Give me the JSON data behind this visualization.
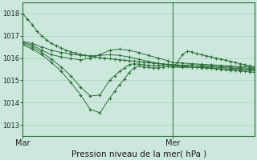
{
  "background_color": "#cce8dc",
  "grid_color": "#aacfbf",
  "line_color": "#2d6e3a",
  "ylabel_ticks": [
    1013,
    1014,
    1015,
    1016,
    1017,
    1018
  ],
  "xlim": [
    0,
    96
  ],
  "ylim": [
    1012.5,
    1018.5
  ],
  "xlabel": "Pression niveau de la mer( hPa )",
  "xtick_positions": [
    0,
    62
  ],
  "xtick_labels": [
    "Mar",
    "Mer"
  ],
  "vline_x": 62,
  "series": [
    {
      "x": [
        0,
        2,
        4,
        6,
        8,
        10,
        12,
        14,
        16,
        18,
        20,
        22,
        24,
        26,
        28,
        30,
        32,
        34,
        36,
        38,
        40,
        42,
        44,
        46,
        48,
        50,
        52,
        54,
        56,
        58,
        60,
        62,
        64,
        66,
        68,
        70,
        72,
        74,
        76,
        78,
        80,
        82,
        84,
        86,
        88,
        90,
        92,
        94,
        96
      ],
      "y": [
        1018.0,
        1017.75,
        1017.5,
        1017.2,
        1017.0,
        1016.8,
        1016.65,
        1016.55,
        1016.45,
        1016.35,
        1016.28,
        1016.22,
        1016.17,
        1016.12,
        1016.08,
        1016.05,
        1016.02,
        1016.0,
        1015.97,
        1015.95,
        1015.93,
        1015.9,
        1015.88,
        1015.86,
        1015.84,
        1015.82,
        1015.8,
        1015.78,
        1015.76,
        1015.74,
        1015.72,
        1015.7,
        1015.68,
        1015.66,
        1015.64,
        1015.62,
        1015.6,
        1015.58,
        1015.56,
        1015.54,
        1015.52,
        1015.5,
        1015.48,
        1015.46,
        1015.44,
        1015.42,
        1015.4,
        1015.38,
        1015.36
      ]
    },
    {
      "x": [
        0,
        4,
        8,
        12,
        16,
        20,
        24,
        28,
        32,
        36,
        38,
        40,
        42,
        44,
        46,
        48,
        50,
        52,
        54,
        56,
        58,
        60,
        62,
        66,
        70,
        74,
        78,
        82,
        86,
        90,
        94,
        96
      ],
      "y": [
        1016.6,
        1016.4,
        1016.15,
        1015.8,
        1015.4,
        1014.9,
        1014.35,
        1013.7,
        1013.55,
        1014.2,
        1014.5,
        1014.8,
        1015.05,
        1015.35,
        1015.55,
        1015.65,
        1015.6,
        1015.58,
        1015.55,
        1015.57,
        1015.6,
        1015.62,
        1015.6,
        1015.58,
        1015.6,
        1015.62,
        1015.6,
        1015.58,
        1015.55,
        1015.52,
        1015.5,
        1015.48
      ]
    },
    {
      "x": [
        0,
        4,
        8,
        12,
        16,
        20,
        24,
        28,
        32,
        36,
        38,
        40,
        42,
        44,
        46,
        48,
        50,
        52,
        54,
        56,
        58,
        60,
        62,
        66,
        70,
        74,
        78,
        82,
        86,
        90,
        94,
        96
      ],
      "y": [
        1016.65,
        1016.5,
        1016.25,
        1015.95,
        1015.6,
        1015.2,
        1014.7,
        1014.3,
        1014.35,
        1015.0,
        1015.2,
        1015.4,
        1015.55,
        1015.7,
        1015.75,
        1015.73,
        1015.7,
        1015.68,
        1015.65,
        1015.67,
        1015.7,
        1015.72,
        1015.7,
        1015.68,
        1015.7,
        1015.68,
        1015.65,
        1015.62,
        1015.6,
        1015.57,
        1015.55,
        1015.52
      ]
    },
    {
      "x": [
        0,
        4,
        8,
        12,
        16,
        20,
        24,
        28,
        32,
        36,
        40,
        44,
        48,
        52,
        56,
        60,
        62,
        66,
        70,
        74,
        78,
        82,
        86,
        90,
        94,
        96
      ],
      "y": [
        1016.7,
        1016.58,
        1016.35,
        1016.15,
        1016.05,
        1015.98,
        1015.92,
        1016.0,
        1016.15,
        1016.35,
        1016.4,
        1016.35,
        1016.25,
        1016.12,
        1016.0,
        1015.88,
        1015.8,
        1015.78,
        1015.75,
        1015.72,
        1015.7,
        1015.67,
        1015.65,
        1015.62,
        1015.6,
        1015.58
      ]
    },
    {
      "x": [
        0,
        4,
        8,
        12,
        16,
        20,
        24,
        28,
        32,
        36,
        40,
        44,
        48,
        52,
        56,
        60,
        62,
        66,
        70,
        74,
        78,
        82,
        86,
        90,
        94,
        96
      ],
      "y": [
        1016.75,
        1016.65,
        1016.5,
        1016.35,
        1016.25,
        1016.18,
        1016.12,
        1016.1,
        1016.12,
        1016.15,
        1016.12,
        1016.05,
        1015.95,
        1015.85,
        1015.77,
        1015.7,
        1015.65,
        1015.62,
        1015.6,
        1015.57,
        1015.55,
        1015.52,
        1015.5,
        1015.48,
        1015.46,
        1015.44
      ]
    },
    {
      "x": [
        62,
        64,
        66,
        68,
        70,
        72,
        74,
        76,
        78,
        80,
        82,
        84,
        86,
        88,
        90,
        92,
        94,
        96
      ],
      "y": [
        1015.58,
        1015.8,
        1016.15,
        1016.3,
        1016.28,
        1016.2,
        1016.15,
        1016.1,
        1016.05,
        1016.0,
        1015.95,
        1015.9,
        1015.85,
        1015.8,
        1015.75,
        1015.7,
        1015.65,
        1015.6
      ]
    }
  ]
}
